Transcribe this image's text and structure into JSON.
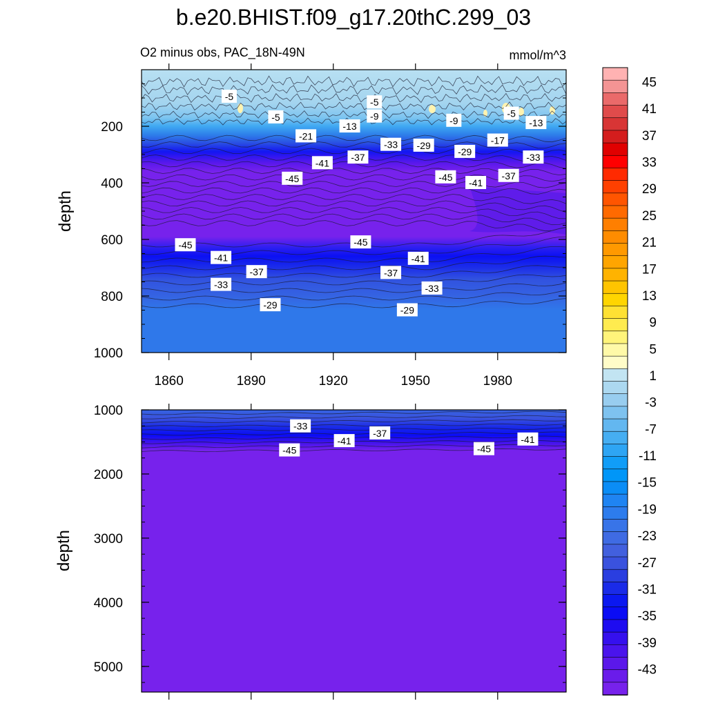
{
  "title": "b.e20.BHIST.f09_g17.20thC.299_03",
  "colors": {
    "background": "#ffffff",
    "axis": "#000000",
    "contour_line": "#1a1a2e",
    "label_bg": "#ffffff"
  },
  "chart_data": [
    {
      "type": "contour",
      "panel": "upper",
      "subtitle_left": "O2 minus obs, PAC_18N-49N",
      "subtitle_right": "mmol/m^3",
      "xlabel": "",
      "ylabel": "depth",
      "xlim": [
        1850,
        2005
      ],
      "ylim": [
        1000,
        0
      ],
      "x_ticks": [
        1860,
        1890,
        1920,
        1950,
        1980
      ],
      "x_tick_labels": [
        "1860",
        "1890",
        "1920",
        "1950",
        "1980"
      ],
      "y_ticks": [
        200,
        400,
        600,
        800,
        1000
      ],
      "y_tick_labels": [
        "200",
        "400",
        "600",
        "800",
        "1000"
      ],
      "contour_labels": [
        {
          "x": 1882,
          "depth": 95,
          "value": "-5"
        },
        {
          "x": 1935,
          "depth": 115,
          "value": "-5"
        },
        {
          "x": 1899,
          "depth": 168,
          "value": "-5"
        },
        {
          "x": 1985,
          "depth": 155,
          "value": "-5"
        },
        {
          "x": 1926,
          "depth": 200,
          "value": "-13"
        },
        {
          "x": 1935,
          "depth": 165,
          "value": "-9"
        },
        {
          "x": 1964,
          "depth": 180,
          "value": "-9"
        },
        {
          "x": 1994,
          "depth": 188,
          "value": "-13"
        },
        {
          "x": 1910,
          "depth": 235,
          "value": "-21"
        },
        {
          "x": 1980,
          "depth": 250,
          "value": "-17"
        },
        {
          "x": 1941,
          "depth": 265,
          "value": "-33"
        },
        {
          "x": 1953,
          "depth": 268,
          "value": "-29"
        },
        {
          "x": 1968,
          "depth": 290,
          "value": "-29"
        },
        {
          "x": 1916,
          "depth": 330,
          "value": "-41"
        },
        {
          "x": 1929,
          "depth": 310,
          "value": "-37"
        },
        {
          "x": 1993,
          "depth": 310,
          "value": "-33"
        },
        {
          "x": 1905,
          "depth": 385,
          "value": "-45"
        },
        {
          "x": 1961,
          "depth": 380,
          "value": "-45"
        },
        {
          "x": 1972,
          "depth": 400,
          "value": "-41"
        },
        {
          "x": 1984,
          "depth": 375,
          "value": "-37"
        },
        {
          "x": 1866,
          "depth": 620,
          "value": "-45"
        },
        {
          "x": 1930,
          "depth": 610,
          "value": "-45"
        },
        {
          "x": 1879,
          "depth": 665,
          "value": "-41"
        },
        {
          "x": 1951,
          "depth": 668,
          "value": "-41"
        },
        {
          "x": 1892,
          "depth": 715,
          "value": "-37"
        },
        {
          "x": 1941,
          "depth": 718,
          "value": "-37"
        },
        {
          "x": 1879,
          "depth": 760,
          "value": "-33"
        },
        {
          "x": 1956,
          "depth": 773,
          "value": "-33"
        },
        {
          "x": 1897,
          "depth": 832,
          "value": "-29"
        },
        {
          "x": 1947,
          "depth": 850,
          "value": "-29"
        }
      ]
    },
    {
      "type": "contour",
      "panel": "lower",
      "xlabel": "",
      "ylabel": "depth",
      "xlim": [
        1850,
        2005
      ],
      "ylim": [
        5400,
        1000
      ],
      "y_ticks": [
        1000,
        2000,
        3000,
        4000,
        5000
      ],
      "y_tick_labels": [
        "1000",
        "2000",
        "3000",
        "4000",
        "5000"
      ],
      "contour_labels": [
        {
          "x": 1908,
          "depth": 1255,
          "value": "-33"
        },
        {
          "x": 1937,
          "depth": 1365,
          "value": "-37"
        },
        {
          "x": 1924,
          "depth": 1485,
          "value": "-41"
        },
        {
          "x": 1904,
          "depth": 1630,
          "value": "-45"
        },
        {
          "x": 1975,
          "depth": 1610,
          "value": "-45"
        },
        {
          "x": 1991,
          "depth": 1460,
          "value": "-41"
        }
      ]
    }
  ],
  "colorbar": {
    "labels": [
      "45",
      "41",
      "37",
      "33",
      "29",
      "25",
      "21",
      "17",
      "13",
      "9",
      "5",
      "1",
      "-3",
      "-7",
      "-11",
      "-15",
      "-19",
      "-23",
      "-27",
      "-31",
      "-35",
      "-39",
      "-43"
    ],
    "levels_top_to_bottom": [
      "#ffb2b2",
      "#f49494",
      "#ea6a6a",
      "#e04b4b",
      "#d83535",
      "#d41d1d",
      "#e00000",
      "#ff0000",
      "#ff2a00",
      "#ff4000",
      "#ff5500",
      "#ff6a00",
      "#ff7f00",
      "#ff8c00",
      "#ff9900",
      "#ffa500",
      "#ffb300",
      "#ffc400",
      "#ffd500",
      "#ffe133",
      "#ffeb4f",
      "#fff47a",
      "#fff9a8",
      "#fffcc8",
      "#c2e4f2",
      "#acd8f0",
      "#98cdef",
      "#7ec2ef",
      "#63b7f0",
      "#46aef2",
      "#2ea5f4",
      "#119df7",
      "#0096f8",
      "#0b8df6",
      "#1f84f2",
      "#2d7ced",
      "#3874e8",
      "#3f6be3",
      "#4260de",
      "#3a52de",
      "#2a3ee0",
      "#1a2be8",
      "#0b18f0",
      "#0a0cf5",
      "#1e0cf0",
      "#3510ee",
      "#4a14ec",
      "#5b18ea",
      "#6a1cea",
      "#7722ec"
    ]
  }
}
